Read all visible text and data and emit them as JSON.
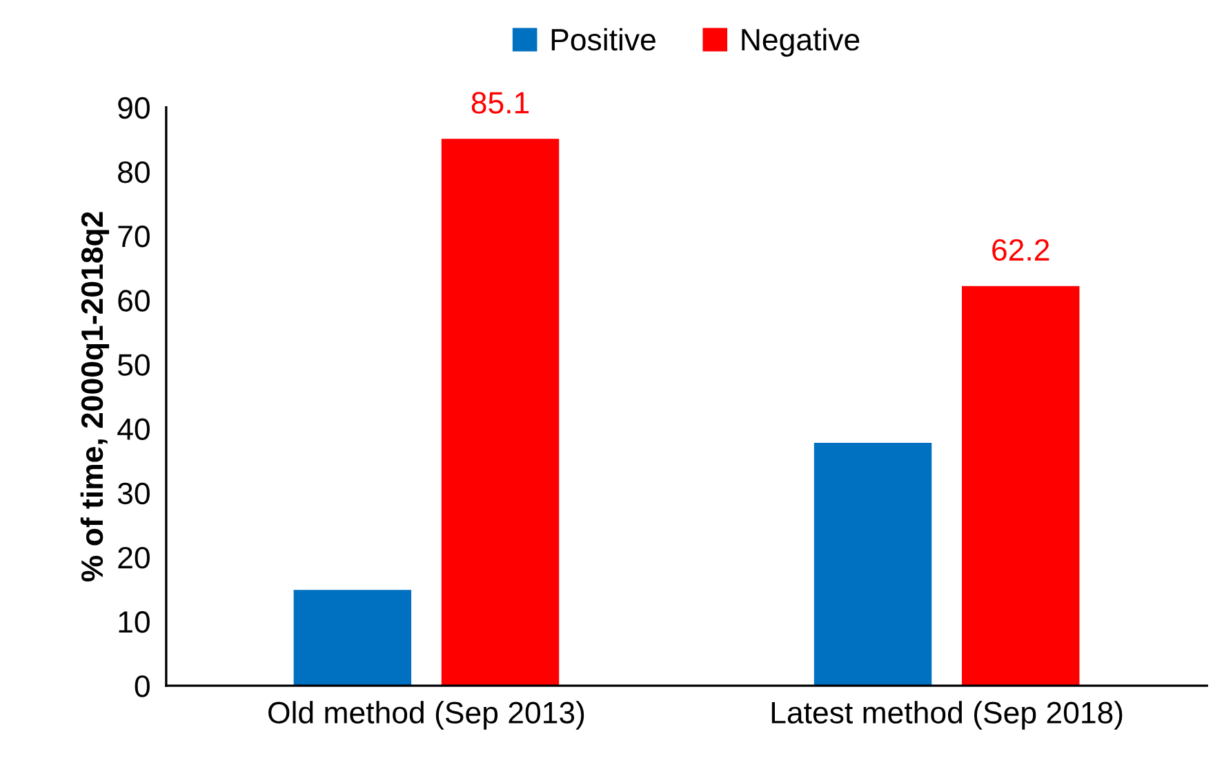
{
  "chart_data": {
    "type": "bar",
    "ylabel": "% of time, 2000q1-2018q2",
    "categories": [
      "Old method (Sep 2013)",
      "Latest method (Sep 2018)"
    ],
    "series": [
      {
        "name": "Positive",
        "color": "#0070c0",
        "values": [
          14.9,
          37.8
        ]
      },
      {
        "name": "Negative",
        "color": "#ff0000",
        "values": [
          85.1,
          62.2
        ],
        "value_labels": [
          "85.1",
          "62.2"
        ]
      }
    ],
    "ylim": [
      0,
      90
    ],
    "yticks": [
      0,
      10,
      20,
      30,
      40,
      50,
      60,
      70,
      80,
      90
    ],
    "grid": false,
    "legend": "top"
  }
}
